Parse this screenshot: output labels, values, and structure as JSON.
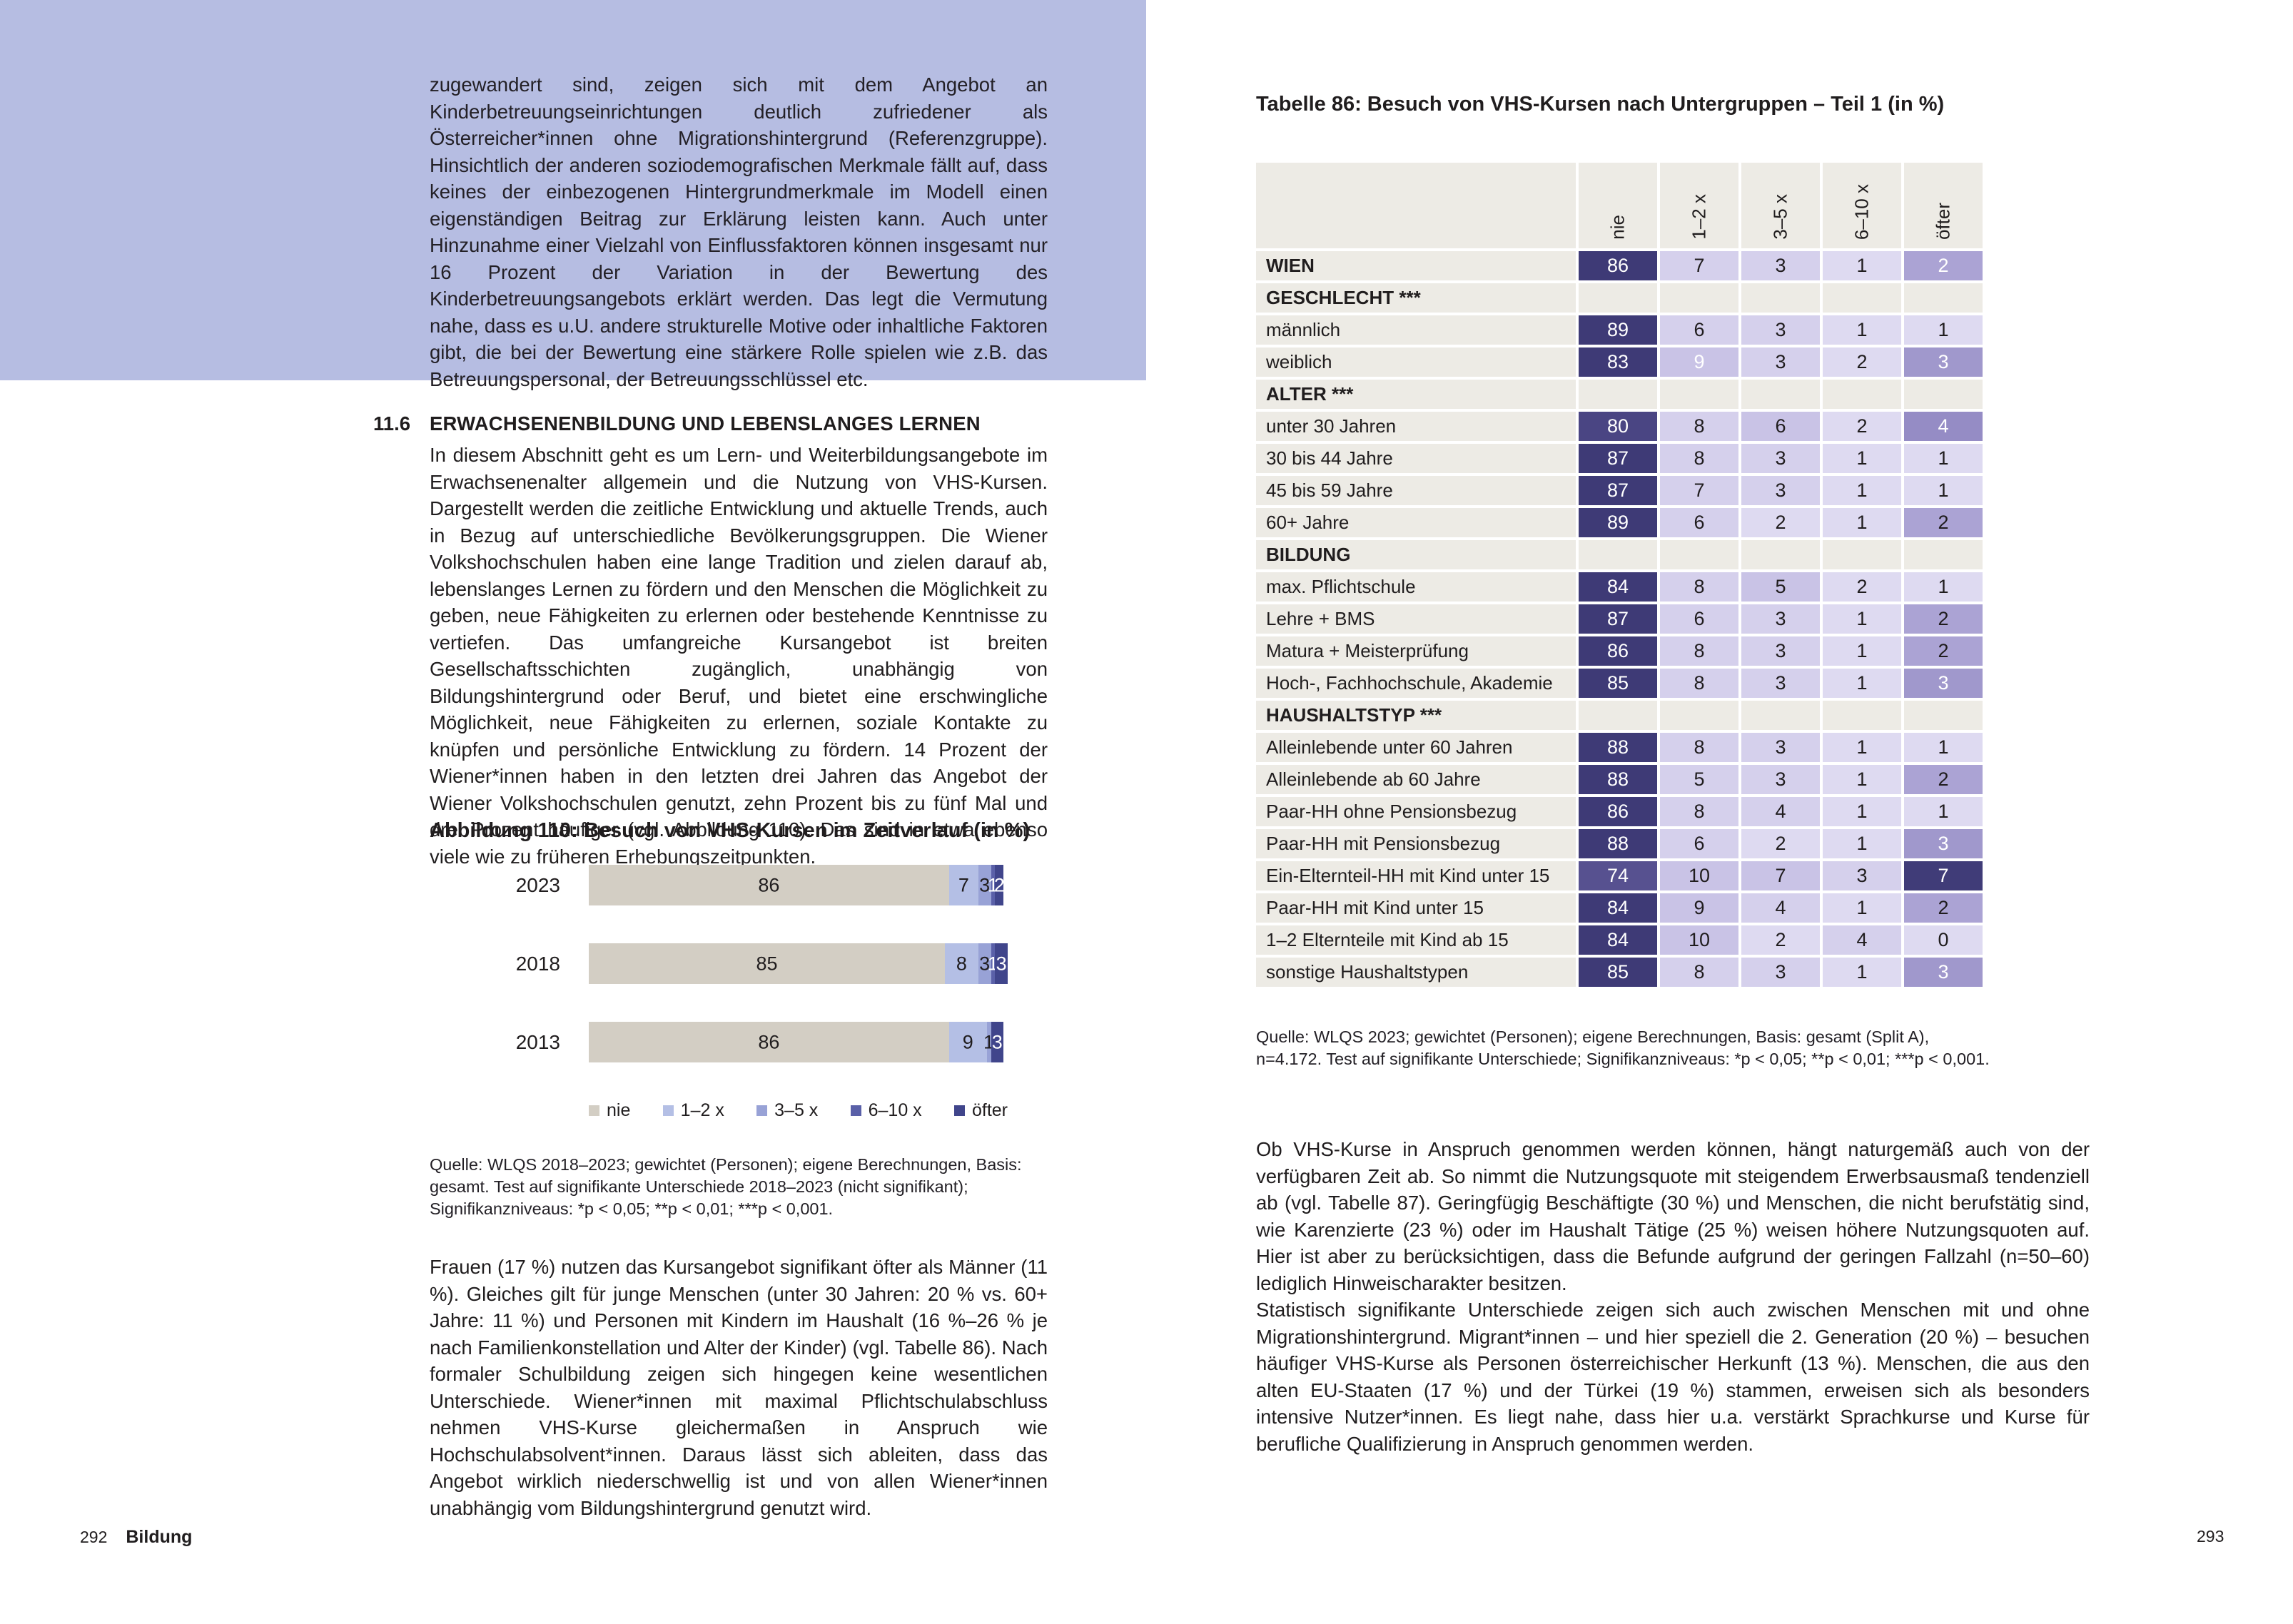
{
  "page_left": {
    "highlight_box_text": "zugewandert sind, zeigen sich mit dem Angebot an Kinderbetreuungseinrichtungen deutlich zufriedener als Österreicher*innen ohne Migrationshintergrund (Referenzgruppe). Hinsichtlich der anderen soziodemografischen Merkmale fällt auf, dass keines der einbezogenen Hintergrundmerkmale im Modell einen eigenständigen Beitrag zur Erklärung leisten kann. Auch unter Hinzunahme einer Vielzahl von Einflussfaktoren können insgesamt nur 16 Prozent der Variation in der Bewertung des Kinderbetreuungsangebots erklärt werden. Das legt die Vermutung nahe, dass es u.U. andere strukturelle Motive oder inhaltliche Faktoren gibt, die bei der Bewertung eine stärkere Rolle spielen wie z.B. das Betreuungspersonal, der Betreuungsschlüssel etc.",
    "section": {
      "number": "11.6",
      "title": "ERWACHSENENBILDUNG UND LEBENSLANGES LERNEN"
    },
    "paragraph1": "In diesem Abschnitt geht es um Lern- und Weiterbildungsangebote im Erwachsenenalter allgemein und die Nutzung von VHS-Kursen. Dargestellt werden die zeitliche Entwicklung und aktuelle Trends, auch in Bezug auf unterschiedliche Bevölkerungsgruppen. Die Wiener Volkshochschulen haben eine lange Tradition und zielen darauf ab, lebenslanges Lernen zu fördern und den Menschen die Möglichkeit zu geben, neue Fähigkeiten zu erlernen oder bestehende Kenntnisse zu vertiefen. Das umfangreiche Kursangebot ist breiten Gesellschaftsschichten zugänglich, unabhängig von Bildungshintergrund oder Beruf, und bietet eine erschwingliche Möglichkeit, neue Fähigkeiten zu erlernen, soziale Kontakte zu knüpfen und persönliche Entwicklung zu fördern. 14 Prozent der Wiener*innen haben in den letzten drei Jahren das Angebot der Wiener Volkshochschulen genutzt, zehn Prozent bis zu fünf Mal und drei Prozent häufiger (vgl. Abbildung 110). Das sind in etwa ebenso viele wie zu früheren Erhebungszeitpunkten.",
    "figure": {
      "title": "Abbildung 110: Besuch von VHS-Kursen im Zeitverlauf (in %)",
      "source": "Quelle: WLQS 2018–2023; gewichtet (Personen); eigene Berechnungen, Basis: gesamt. Test auf signifikante Unterschiede 2018–2023 (nicht signifikant); Signifikanzniveaus: *p < 0,05; **p < 0,01; ***p < 0,001."
    },
    "paragraph2": "Frauen (17 %) nutzen das Kursangebot signifikant öfter als Männer (11 %). Gleiches gilt für junge Menschen (unter 30 Jahren: 20 % vs. 60+ Jahre: 11 %) und Personen mit Kindern im Haushalt (16 %–26 % je nach Familienkonstellation und Alter der Kinder) (vgl. Tabelle 86). Nach formaler Schulbildung zeigen sich hingegen keine wesentlichen Unterschiede. Wiener*innen mit maximal Pflichtschulabschluss nehmen VHS-Kurse gleichermaßen in Anspruch wie Hochschulabsolvent*innen. Daraus lässt sich ableiten, dass das Angebot wirklich niederschwellig ist und von allen Wiener*innen unabhängig vom Bildungshintergrund genutzt wird.",
    "footer": {
      "page_number": "292",
      "chapter": "Bildung"
    }
  },
  "page_right": {
    "table": {
      "title": "Tabelle 86: Besuch von VHS-Kursen nach Untergruppen – Teil 1 (in %)",
      "columns": [
        "nie",
        "1–2 x",
        "3–5 x",
        "6–10 x",
        "öfter"
      ],
      "rows": [
        {
          "t": "data",
          "bold": true,
          "label": "WIEN",
          "cells": [
            [
              "86",
              "nie3"
            ],
            [
              "7",
              "lav2"
            ],
            [
              "3",
              "lav2"
            ],
            [
              "1",
              "lav1"
            ],
            [
              "2",
              "med1w"
            ]
          ]
        },
        {
          "t": "sec",
          "label": "GESCHLECHT ***"
        },
        {
          "t": "data",
          "label": "männlich",
          "cells": [
            [
              "89",
              "nie3"
            ],
            [
              "6",
              "lav2"
            ],
            [
              "3",
              "lav2"
            ],
            [
              "1",
              "lav1"
            ],
            [
              "1",
              "lav1"
            ]
          ]
        },
        {
          "t": "data",
          "label": "weiblich",
          "cells": [
            [
              "83",
              "nie3"
            ],
            [
              "9",
              "lav3w"
            ],
            [
              "3",
              "lav2"
            ],
            [
              "2",
              "lav1"
            ],
            [
              "3",
              "med2w"
            ]
          ]
        },
        {
          "t": "sec",
          "label": "ALTER ***"
        },
        {
          "t": "data",
          "label": "unter 30 Jahren",
          "cells": [
            [
              "80",
              "nie2"
            ],
            [
              "8",
              "lav2"
            ],
            [
              "6",
              "lav3"
            ],
            [
              "2",
              "lav1"
            ],
            [
              "4",
              "med3w"
            ]
          ]
        },
        {
          "t": "data",
          "label": "30 bis 44 Jahre",
          "cells": [
            [
              "87",
              "nie3"
            ],
            [
              "8",
              "lav2"
            ],
            [
              "3",
              "lav2"
            ],
            [
              "1",
              "lav1"
            ],
            [
              "1",
              "lav1"
            ]
          ]
        },
        {
          "t": "data",
          "label": "45 bis 59 Jahre",
          "cells": [
            [
              "87",
              "nie3"
            ],
            [
              "7",
              "lav2"
            ],
            [
              "3",
              "lav2"
            ],
            [
              "1",
              "lav1"
            ],
            [
              "1",
              "lav1"
            ]
          ]
        },
        {
          "t": "data",
          "label": "60+ Jahre",
          "cells": [
            [
              "89",
              "nie3"
            ],
            [
              "6",
              "lav2"
            ],
            [
              "2",
              "lav1"
            ],
            [
              "1",
              "lav1"
            ],
            [
              "2",
              "med1"
            ]
          ]
        },
        {
          "t": "sec",
          "label": "BILDUNG"
        },
        {
          "t": "data",
          "label": "max. Pflichtschule",
          "cells": [
            [
              "84",
              "nie3"
            ],
            [
              "8",
              "lav2"
            ],
            [
              "5",
              "lav3"
            ],
            [
              "2",
              "lav1"
            ],
            [
              "1",
              "lav1"
            ]
          ]
        },
        {
          "t": "data",
          "label": "Lehre + BMS",
          "cells": [
            [
              "87",
              "nie3"
            ],
            [
              "6",
              "lav2"
            ],
            [
              "3",
              "lav2"
            ],
            [
              "1",
              "lav1"
            ],
            [
              "2",
              "med1"
            ]
          ]
        },
        {
          "t": "data",
          "label": "Matura + Meisterprüfung",
          "cells": [
            [
              "86",
              "nie3"
            ],
            [
              "8",
              "lav2"
            ],
            [
              "3",
              "lav2"
            ],
            [
              "1",
              "lav1"
            ],
            [
              "2",
              "med1"
            ]
          ]
        },
        {
          "t": "data",
          "label": "Hoch-, Fachhochschule, Akademie",
          "cells": [
            [
              "85",
              "nie3"
            ],
            [
              "8",
              "lav2"
            ],
            [
              "3",
              "lav2"
            ],
            [
              "1",
              "lav1"
            ],
            [
              "3",
              "med2w"
            ]
          ]
        },
        {
          "t": "sec",
          "label": "HAUSHALTSTYP ***"
        },
        {
          "t": "data",
          "label": "Alleinlebende unter 60 Jahren",
          "cells": [
            [
              "88",
              "nie3"
            ],
            [
              "8",
              "lav2"
            ],
            [
              "3",
              "lav2"
            ],
            [
              "1",
              "lav1"
            ],
            [
              "1",
              "lav1"
            ]
          ]
        },
        {
          "t": "data",
          "label": "Alleinlebende ab 60 Jahre",
          "cells": [
            [
              "88",
              "nie3"
            ],
            [
              "5",
              "lav2"
            ],
            [
              "3",
              "lav2"
            ],
            [
              "1",
              "lav1"
            ],
            [
              "2",
              "med1"
            ]
          ]
        },
        {
          "t": "data",
          "label": "Paar-HH ohne Pensionsbezug",
          "cells": [
            [
              "86",
              "nie3"
            ],
            [
              "8",
              "lav2"
            ],
            [
              "4",
              "lav2"
            ],
            [
              "1",
              "lav1"
            ],
            [
              "1",
              "lav1"
            ]
          ]
        },
        {
          "t": "data",
          "label": "Paar-HH mit Pensionsbezug",
          "cells": [
            [
              "88",
              "nie3"
            ],
            [
              "6",
              "lav2"
            ],
            [
              "2",
              "lav1"
            ],
            [
              "1",
              "lav1"
            ],
            [
              "3",
              "med2w"
            ]
          ]
        },
        {
          "t": "data",
          "label": "Ein-Elternteil-HH mit Kind unter 15",
          "cells": [
            [
              "74",
              "nie1"
            ],
            [
              "10",
              "lav3"
            ],
            [
              "7",
              "lav3"
            ],
            [
              "3",
              "lav2"
            ],
            [
              "7",
              "navw"
            ]
          ]
        },
        {
          "t": "data",
          "label": "Paar-HH mit Kind unter 15",
          "cells": [
            [
              "84",
              "nie3"
            ],
            [
              "9",
              "lav3"
            ],
            [
              "4",
              "lav2"
            ],
            [
              "1",
              "lav1"
            ],
            [
              "2",
              "med1"
            ]
          ]
        },
        {
          "t": "data",
          "label": "1–2 Elternteile mit Kind ab 15",
          "cells": [
            [
              "84",
              "nie3"
            ],
            [
              "10",
              "lav3"
            ],
            [
              "2",
              "lav1"
            ],
            [
              "4",
              "lav2"
            ],
            [
              "0",
              "lav1"
            ]
          ]
        },
        {
          "t": "data",
          "label": "sonstige Haushaltstypen",
          "cells": [
            [
              "85",
              "nie3"
            ],
            [
              "8",
              "lav2"
            ],
            [
              "3",
              "lav2"
            ],
            [
              "1",
              "lav1"
            ],
            [
              "3",
              "med2w"
            ]
          ]
        }
      ],
      "source": "Quelle: WLQS 2023; gewichtet (Personen); eigene Berechnungen, Basis: gesamt (Split A), n=4.172. Test auf signifikante Unterschiede; Signifikanzniveaus: *p < 0,05; **p < 0,01; ***p < 0,001."
    },
    "paragraphs": [
      "Ob VHS-Kurse in Anspruch genommen werden können, hängt naturgemäß auch von der verfügbaren Zeit ab. So nimmt die Nutzungsquote mit steigendem Erwerbsausmaß tendenziell ab (vgl. Tabelle 87). Geringfügig Beschäftigte (30 %) und Menschen, die nicht berufstätig sind, wie Karenzierte (23 %) oder im Haushalt Tätige (25 %) weisen höhere Nutzungsquoten auf. Hier ist aber zu berücksichtigen, dass die Befunde aufgrund der geringen Fallzahl (n=50–60) lediglich Hinweischarakter besitzen.",
      "Statistisch signifikante Unterschiede zeigen sich auch zwischen Menschen mit und ohne Migrationshintergrund. Migrant*innen – und hier speziell die 2. Generation (20 %) – besuchen häufiger VHS-Kurse als Personen österreichischer Herkunft (13 %). Menschen, die aus den alten EU-Staaten (17 %) und der Türkei (19 %) stammen, erweisen sich als besonders intensive Nutzer*innen. Es liegt nahe, dass hier u.a. verstärkt Sprachkurse und Kurse für berufliche Qualifizierung in Anspruch genommen werden."
    ],
    "footer": {
      "page_number": "293"
    }
  },
  "chart_data": {
    "type": "bar",
    "stacked": true,
    "orientation": "horizontal",
    "title": "Abbildung 110: Besuch von VHS-Kursen im Zeitverlauf (in %)",
    "categories": [
      "2023",
      "2018",
      "2013"
    ],
    "series": [
      {
        "name": "nie",
        "color": "#d3cec4",
        "values": [
          86,
          85,
          86
        ]
      },
      {
        "name": "1–2 x",
        "color": "#b4bfe5",
        "values": [
          7,
          8,
          9
        ]
      },
      {
        "name": "3–5 x",
        "color": "#98a2d6",
        "values": [
          3,
          3,
          1
        ]
      },
      {
        "name": "6–10 x",
        "color": "#5a60a8",
        "values": [
          1,
          1,
          0
        ]
      },
      {
        "name": "öfter",
        "color": "#40458b",
        "values": [
          2,
          3,
          3
        ]
      }
    ],
    "xlim": [
      0,
      100
    ],
    "value_labels_shown": true,
    "legend_position": "bottom"
  },
  "palette": {
    "highlight_box": "#b6bde2",
    "table_grey": "#edebe5",
    "dark_text": "#201d1e",
    "cell_shades": {
      "nie3": {
        "bg": "#3e3a76",
        "fg": "#ffffff"
      },
      "nie2": {
        "bg": "#4a4583",
        "fg": "#ffffff"
      },
      "nie1": {
        "bg": "#575190",
        "fg": "#ffffff"
      },
      "lav1": {
        "bg": "#dedaf1",
        "fg": "#201d1e"
      },
      "lav2": {
        "bg": "#d5d0ec",
        "fg": "#201d1e"
      },
      "lav3": {
        "bg": "#c9c3e6",
        "fg": "#201d1e"
      },
      "lav3w": {
        "bg": "#c9c3e6",
        "fg": "#ffffff"
      },
      "med1": {
        "bg": "#aba3d4",
        "fg": "#201d1e"
      },
      "med1w": {
        "bg": "#aba3d4",
        "fg": "#ffffff"
      },
      "med2w": {
        "bg": "#a098cc",
        "fg": "#ffffff"
      },
      "med3w": {
        "bg": "#958cc5",
        "fg": "#ffffff"
      },
      "navw": {
        "bg": "#403c78",
        "fg": "#ffffff"
      }
    }
  }
}
